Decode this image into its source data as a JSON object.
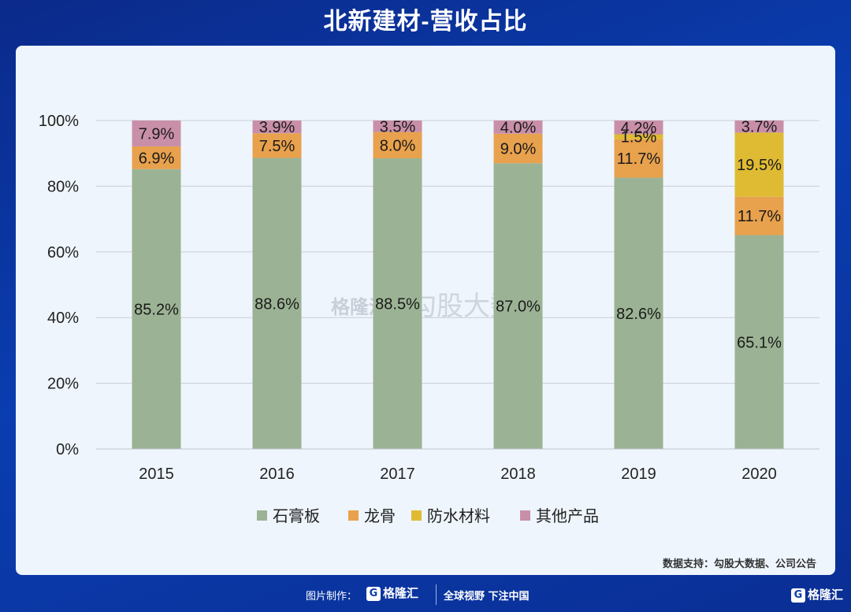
{
  "header": {
    "title": "北新建材-营收占比"
  },
  "watermark": {
    "brand": "格隆汇",
    "text": "勾股大数据"
  },
  "source": "数据支持：勾股大数据、公司公告",
  "footer": {
    "made_by": "图片制作：",
    "logo_text": "格隆汇",
    "slogan": "全球视野 下注中国",
    "corner_logo": "格隆汇"
  },
  "chart_data": {
    "type": "bar",
    "stacked": true,
    "title": "北新建材-营收占比",
    "xlabel": "",
    "ylabel": "",
    "ylim": [
      0,
      100
    ],
    "yticks": [
      "0%",
      "20%",
      "40%",
      "60%",
      "80%",
      "100%"
    ],
    "categories": [
      "2015",
      "2016",
      "2017",
      "2018",
      "2019",
      "2020"
    ],
    "legend_position": "bottom",
    "grid": true,
    "series": [
      {
        "name": "石膏板",
        "color": "#9bb394",
        "values": [
          85.2,
          88.6,
          88.5,
          87.0,
          82.6,
          65.1
        ],
        "labels": [
          "85.2%",
          "88.6%",
          "88.5%",
          "87.0%",
          "82.6%",
          "65.1%"
        ]
      },
      {
        "name": "龙骨",
        "color": "#e8a14d",
        "values": [
          6.9,
          7.5,
          8.0,
          9.0,
          11.7,
          11.7
        ],
        "labels": [
          "6.9%",
          "7.5%",
          "8.0%",
          "9.0%",
          "11.7%",
          "11.7%"
        ]
      },
      {
        "name": "防水材料",
        "color": "#dfbb33",
        "values": [
          0,
          0,
          0,
          0,
          1.5,
          19.5
        ],
        "labels": [
          "",
          "",
          "",
          "",
          "1.5%",
          "19.5%"
        ]
      },
      {
        "name": "其他产品",
        "color": "#c98fa9",
        "values": [
          7.9,
          3.9,
          3.5,
          4.0,
          4.2,
          3.7
        ],
        "labels": [
          "7.9%",
          "3.9%",
          "3.5%",
          "4.0%",
          "4.2%",
          "3.7%"
        ]
      }
    ]
  }
}
